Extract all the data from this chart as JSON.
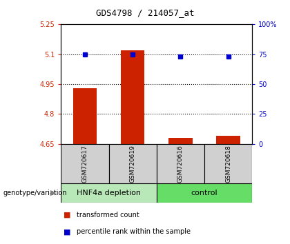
{
  "title": "GDS4798 / 214057_at",
  "samples": [
    "GSM720617",
    "GSM720619",
    "GSM720616",
    "GSM720618"
  ],
  "bar_values": [
    4.93,
    5.12,
    4.68,
    4.69
  ],
  "bar_bottom": 4.65,
  "dot_values": [
    75,
    75,
    73,
    73
  ],
  "ylim_left": [
    4.65,
    5.25
  ],
  "ylim_right": [
    0,
    100
  ],
  "yticks_left": [
    4.65,
    4.8,
    4.95,
    5.1,
    5.25
  ],
  "yticks_right": [
    0,
    25,
    50,
    75,
    100
  ],
  "ytick_labels_left": [
    "4.65",
    "4.8",
    "4.95",
    "5.1",
    "5.25"
  ],
  "ytick_labels_right": [
    "0",
    "25",
    "50",
    "75",
    "100%"
  ],
  "hlines": [
    5.1,
    4.95,
    4.8
  ],
  "bar_color": "#cc2200",
  "dot_color": "#0000cc",
  "left_tick_color": "#cc2200",
  "right_tick_color": "#0000cc",
  "group_label": "genotype/variation",
  "legend_bar": "transformed count",
  "legend_dot": "percentile rank within the sample",
  "group_bg_depletion": "#b8e8b8",
  "group_bg_control": "#66dd66",
  "bar_width": 0.5,
  "title_fontsize": 9,
  "tick_fontsize": 7,
  "sample_fontsize": 6.5,
  "group_fontsize": 8,
  "legend_fontsize": 7,
  "group_label_fontsize": 7
}
